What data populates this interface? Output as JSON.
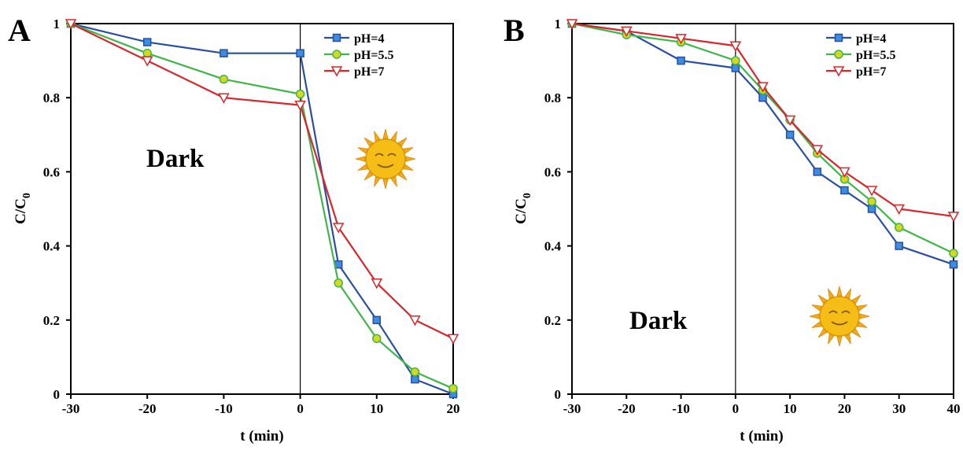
{
  "colors": {
    "blue": "#2a4ea3",
    "green": "#3fb64a",
    "red": "#d8262b",
    "blue_marker": "#3a8de0",
    "green_marker": "#d6d81e",
    "red_marker": "#ffffff"
  },
  "chart_data": [
    {
      "type": "line",
      "panel": "A",
      "annotation": "Dark",
      "decoration": "sun-icon",
      "xlabel": "t (min)",
      "ylabel": "C/C",
      "ylabel_sub": "0",
      "xlim": [
        -30,
        20
      ],
      "ylim": [
        0,
        1
      ],
      "xticks": [
        -30,
        -20,
        -10,
        0,
        10,
        20
      ],
      "yticks": [
        0,
        0.2,
        0.4,
        0.6,
        0.8,
        1
      ],
      "ytick_labels": [
        "0",
        "0.2",
        "0.4",
        "0.6",
        "0.8",
        "1"
      ],
      "divider_x": 0,
      "legend_position": "top-right",
      "series": [
        {
          "name": "pH=4",
          "color": "#2a4ea3",
          "marker": "square",
          "x": [
            -30,
            -20,
            -10,
            0,
            5,
            10,
            15,
            20
          ],
          "y": [
            1.0,
            0.95,
            0.92,
            0.92,
            0.35,
            0.2,
            0.04,
            0.0
          ]
        },
        {
          "name": "pH=5.5",
          "color": "#3fb64a",
          "marker": "circle",
          "x": [
            -30,
            -20,
            -10,
            0,
            5,
            10,
            15,
            20
          ],
          "y": [
            1.0,
            0.92,
            0.85,
            0.81,
            0.3,
            0.15,
            0.06,
            0.015
          ]
        },
        {
          "name": "pH=7",
          "color": "#d8262b",
          "marker": "triangle-down",
          "x": [
            -30,
            -20,
            -10,
            0,
            5,
            10,
            15,
            20
          ],
          "y": [
            1.0,
            0.9,
            0.8,
            0.78,
            0.45,
            0.3,
            0.2,
            0.15
          ]
        }
      ]
    },
    {
      "type": "line",
      "panel": "B",
      "annotation": "Dark",
      "decoration": "sun-icon",
      "xlabel": "t (min)",
      "ylabel": "C/C",
      "ylabel_sub": "0",
      "xlim": [
        -30,
        40
      ],
      "ylim": [
        0,
        1
      ],
      "xticks": [
        -30,
        -20,
        -10,
        0,
        10,
        20,
        30,
        40
      ],
      "yticks": [
        0,
        0.2,
        0.4,
        0.6,
        0.8,
        1
      ],
      "ytick_labels": [
        "0",
        "0.2",
        "0.4",
        "0.6",
        "0.8",
        "1"
      ],
      "divider_x": 0,
      "legend_position": "top-right",
      "series": [
        {
          "name": "pH=4",
          "color": "#2a4ea3",
          "marker": "square",
          "x": [
            -30,
            -20,
            -10,
            0,
            5,
            10,
            15,
            20,
            25,
            30,
            40
          ],
          "y": [
            1.0,
            0.98,
            0.9,
            0.88,
            0.8,
            0.7,
            0.6,
            0.55,
            0.5,
            0.4,
            0.35
          ]
        },
        {
          "name": "pH=5.5",
          "color": "#3fb64a",
          "marker": "circle",
          "x": [
            -30,
            -20,
            -10,
            0,
            5,
            10,
            15,
            20,
            25,
            30,
            40
          ],
          "y": [
            1.0,
            0.97,
            0.95,
            0.9,
            0.82,
            0.74,
            0.65,
            0.58,
            0.52,
            0.45,
            0.38
          ]
        },
        {
          "name": "pH=7",
          "color": "#d8262b",
          "marker": "triangle-down",
          "x": [
            -30,
            -20,
            -10,
            0,
            5,
            10,
            15,
            20,
            25,
            30,
            40
          ],
          "y": [
            1.0,
            0.98,
            0.96,
            0.94,
            0.83,
            0.74,
            0.66,
            0.6,
            0.55,
            0.5,
            0.48
          ]
        }
      ]
    }
  ]
}
